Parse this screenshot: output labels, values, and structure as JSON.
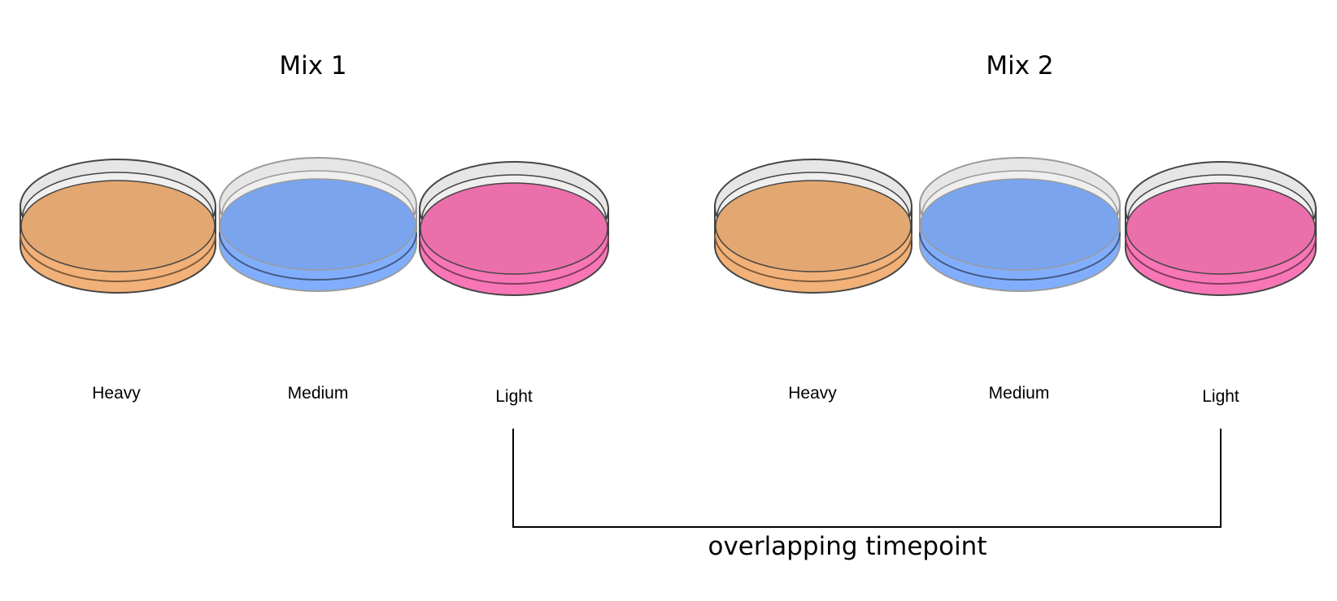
{
  "mixes": [
    {
      "title": "Mix 1",
      "dishes": [
        {
          "label": "Heavy",
          "color": "#E3A771"
        },
        {
          "label": "Medium",
          "color": "#7AA4EE"
        },
        {
          "label": "Light",
          "color": "#EA6FAB"
        }
      ]
    },
    {
      "title": "Mix 2",
      "dishes": [
        {
          "label": "Heavy",
          "color": "#E3A771"
        },
        {
          "label": "Medium",
          "color": "#7AA4EE"
        },
        {
          "label": "Light",
          "color": "#EA6FAB"
        }
      ]
    }
  ],
  "bracket": {
    "label": "overlapping timepoint",
    "line_color": "#000000"
  }
}
